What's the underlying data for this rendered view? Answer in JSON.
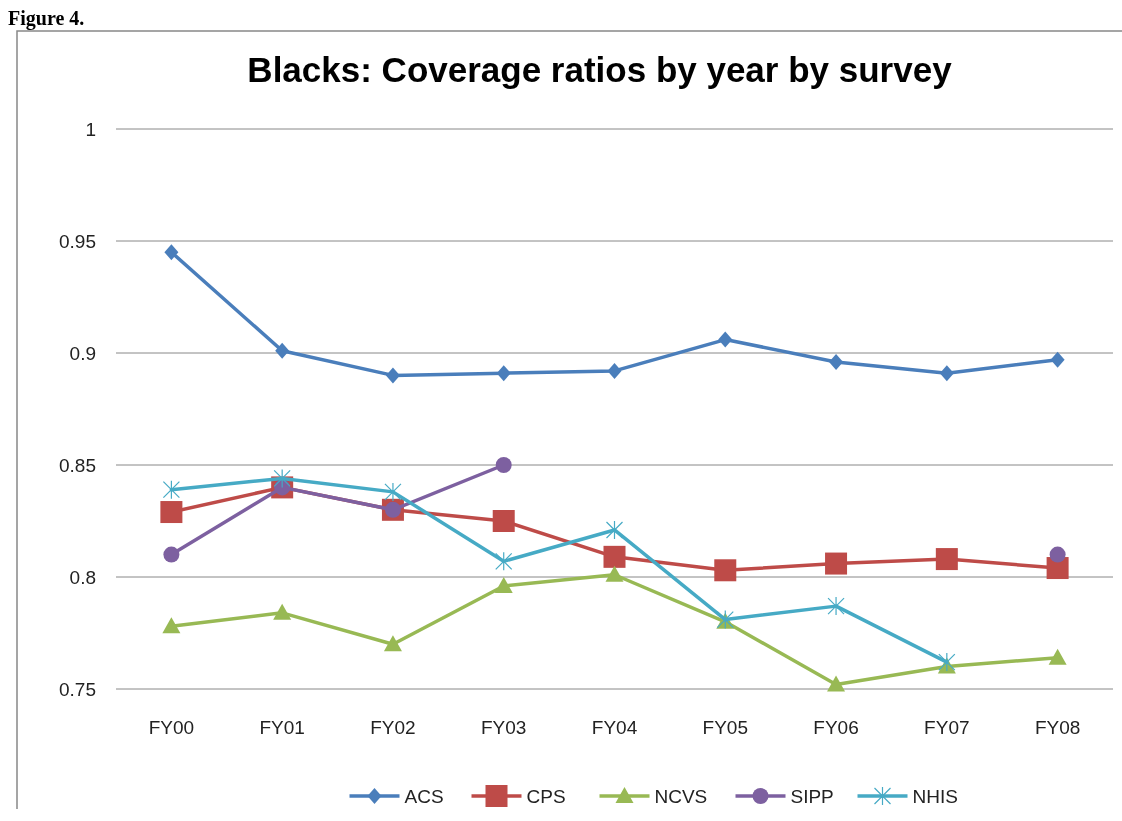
{
  "chart_data": {
    "type": "line",
    "title": "Blacks:  Coverage ratios by year by survey",
    "annotations": [
      "Figure 4."
    ],
    "categories": [
      "FY00",
      "FY01",
      "FY02",
      "FY03",
      "FY04",
      "FY05",
      "FY06",
      "FY07",
      "FY08"
    ],
    "series": [
      {
        "name": "ACS",
        "color": "#4a7ebb",
        "marker": "diamond",
        "values": [
          0.945,
          0.901,
          0.89,
          0.891,
          0.892,
          0.906,
          0.896,
          0.891,
          0.897
        ]
      },
      {
        "name": "CPS",
        "color": "#be4b48",
        "marker": "square",
        "values": [
          0.829,
          0.84,
          0.83,
          0.825,
          0.809,
          0.803,
          0.806,
          0.808,
          0.804
        ]
      },
      {
        "name": "NCVS",
        "color": "#98b954",
        "marker": "triangle",
        "values": [
          0.778,
          0.784,
          0.77,
          0.796,
          0.801,
          0.78,
          0.752,
          0.76,
          0.764
        ]
      },
      {
        "name": "SIPP",
        "color": "#7d60a0",
        "marker": "circle",
        "values": [
          0.81,
          0.84,
          0.83,
          0.85,
          null,
          null,
          null,
          null,
          0.81
        ]
      },
      {
        "name": "NHIS",
        "color": "#46aac5",
        "marker": "cross",
        "values": [
          0.839,
          0.844,
          0.838,
          0.807,
          0.821,
          0.781,
          0.787,
          0.762,
          null
        ]
      }
    ],
    "ylim": [
      0.75,
      1
    ],
    "yticks": [
      0.75,
      0.8,
      0.85,
      0.9,
      0.95,
      1
    ],
    "grid": "y",
    "legend": "bottom",
    "line_style": "solid"
  }
}
